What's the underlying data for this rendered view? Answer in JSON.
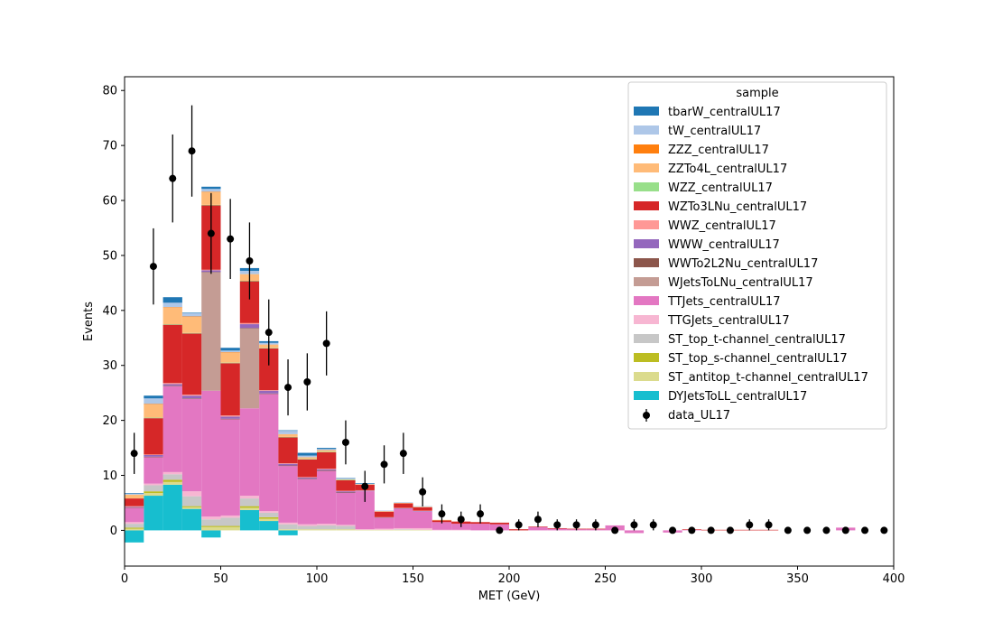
{
  "chart_data": {
    "type": "stacked-histogram",
    "xlabel": "MET (GeV)",
    "ylabel": "Events",
    "xlim": [
      0,
      400
    ],
    "ylim": [
      -6.5,
      82.5
    ],
    "xticks": [
      0,
      50,
      100,
      150,
      200,
      250,
      300,
      350,
      400
    ],
    "yticks": [
      0,
      10,
      20,
      30,
      40,
      50,
      60,
      70,
      80
    ],
    "legend_title": "sample",
    "legend_position": "upper right",
    "bin_edges": [
      0,
      10,
      20,
      30,
      40,
      50,
      60,
      70,
      80,
      90,
      100,
      110,
      120,
      130,
      140,
      150,
      160,
      170,
      180,
      190,
      200,
      210,
      220,
      230,
      240,
      250,
      260,
      270,
      280,
      290,
      300,
      310,
      320,
      330,
      340,
      350,
      360,
      370,
      380,
      390,
      400
    ],
    "series": [
      {
        "name": "DYJetsToLL_centralUL17",
        "color": "#17becf",
        "values": [
          -2.2,
          6.3,
          8.3,
          3.9,
          -1.3,
          0.0,
          3.7,
          1.7,
          -0.9,
          0.0,
          0.0,
          0.0,
          0,
          0,
          0,
          0,
          0,
          0,
          0,
          0,
          0,
          0,
          0,
          0,
          0,
          0,
          0,
          0,
          0,
          0,
          0,
          0,
          0,
          0,
          0,
          0,
          0,
          0,
          0,
          0
        ]
      },
      {
        "name": "ST_antitop_t-channel_centralUL17",
        "color": "#dbdb8d",
        "values": [
          0.3,
          0.5,
          0.5,
          0.3,
          0.6,
          0.6,
          0.4,
          0.4,
          0.2,
          0.2,
          0.2,
          0.2,
          0.1,
          0.1,
          0.1,
          0.1,
          0,
          0,
          0,
          0,
          0,
          0,
          0,
          0,
          0,
          0,
          0,
          0,
          0,
          0,
          0,
          0,
          0,
          0,
          0,
          0,
          0,
          0,
          0,
          0
        ]
      },
      {
        "name": "ST_top_s-channel_centralUL17",
        "color": "#bcbd22",
        "values": [
          0.2,
          0.3,
          0.4,
          0.2,
          0.2,
          0.2,
          0.3,
          0.3,
          0,
          0,
          0,
          0,
          0,
          0,
          0,
          0,
          0,
          0,
          0,
          0,
          0,
          0,
          0,
          0,
          0,
          0,
          0,
          0,
          0,
          0,
          0,
          0,
          0,
          0,
          0,
          0,
          0,
          0,
          0,
          0
        ]
      },
      {
        "name": "ST_top_t-channel_centralUL17",
        "color": "#c7c7c7",
        "values": [
          0.7,
          1.1,
          1.0,
          1.8,
          1.2,
          1.5,
          1.4,
          0.8,
          0.9,
          0.6,
          0.7,
          0.6,
          0.0,
          0.0,
          0.1,
          0.0,
          0,
          0,
          0,
          0,
          0,
          0,
          0,
          0,
          0,
          0,
          0,
          0,
          0,
          0,
          0,
          0,
          0,
          0,
          0,
          0,
          0,
          0,
          0,
          0
        ]
      },
      {
        "name": "TTGJets_centralUL17",
        "color": "#f7b6d2",
        "values": [
          0.3,
          0.3,
          0.4,
          0.9,
          0.5,
          0.4,
          0.5,
          0.3,
          0.3,
          0.3,
          0.3,
          0.2,
          0.1,
          0.2,
          0.2,
          0.3,
          0.1,
          0.1,
          0.0,
          0.0,
          0.0,
          0.0,
          0,
          0,
          0,
          0,
          0,
          0,
          0,
          0,
          0,
          0,
          0,
          0,
          0,
          0,
          0,
          0,
          0,
          0
        ]
      },
      {
        "name": "TTJets_centralUL17",
        "color": "#e377c2",
        "values": [
          2.6,
          4.8,
          15.6,
          16.8,
          22.9,
          17.5,
          15.9,
          21.3,
          10.3,
          8.2,
          9.6,
          5.8,
          6.9,
          1.9,
          3.5,
          3.0,
          1.4,
          1.1,
          1.2,
          1.1,
          0.0,
          0.6,
          0.3,
          0.2,
          0.2,
          0.9,
          -0.5,
          0.0,
          -0.4,
          0.1,
          0,
          0,
          0,
          0,
          0,
          0,
          0,
          0.5,
          0,
          0
        ]
      },
      {
        "name": "WJetsToLNu_centralUL17",
        "color": "#c49c94",
        "values": [
          0,
          0,
          0,
          0,
          21.5,
          0,
          14.5,
          0,
          0,
          0,
          0,
          0,
          0,
          0,
          0,
          0,
          0,
          0,
          0,
          0,
          0,
          0,
          0,
          0,
          0,
          0,
          0,
          0,
          0,
          0,
          0,
          0,
          0,
          0,
          0,
          0,
          0,
          0,
          0,
          0
        ]
      },
      {
        "name": "WWTo2L2Nu_centralUL17",
        "color": "#8c564b",
        "values": [
          0.1,
          0.1,
          0.1,
          0.1,
          0.1,
          0.1,
          0.1,
          0.1,
          0.1,
          0.1,
          0.1,
          0.1,
          0,
          0,
          0,
          0,
          0,
          0,
          0,
          0,
          0,
          0,
          0,
          0,
          0,
          0,
          0,
          0,
          0,
          0,
          0,
          0,
          0,
          0,
          0,
          0,
          0,
          0,
          0,
          0
        ]
      },
      {
        "name": "WWW_centralUL17",
        "color": "#9467bd",
        "values": [
          0.1,
          0.3,
          0.3,
          0.5,
          0.3,
          0.4,
          0.7,
          0.5,
          0.3,
          0.2,
          0.2,
          0.2,
          0.1,
          0.1,
          0.1,
          0.1,
          0,
          0,
          0,
          0,
          0,
          0,
          0,
          0,
          0,
          0,
          0,
          0,
          0,
          0,
          0,
          0,
          0,
          0,
          0,
          0,
          0,
          0,
          0,
          0
        ]
      },
      {
        "name": "WWZ_centralUL17",
        "color": "#ff9896",
        "values": [
          0.1,
          0.1,
          0.2,
          0.2,
          0.1,
          0.2,
          0.2,
          0.1,
          0.1,
          0.1,
          0.1,
          0.1,
          0.1,
          0.1,
          0.1,
          0.1,
          0,
          0,
          0,
          0,
          0,
          0,
          0,
          0,
          0,
          0,
          0,
          0,
          0,
          0,
          0,
          0,
          0,
          0,
          0,
          0,
          0,
          0,
          0,
          0
        ]
      },
      {
        "name": "WZTo3LNu_centralUL17",
        "color": "#d62728",
        "values": [
          1.4,
          6.6,
          10.6,
          11.1,
          11.7,
          9.5,
          7.6,
          7.6,
          4.7,
          3.2,
          3.0,
          1.9,
          1.0,
          1.0,
          0.8,
          0.6,
          0.3,
          0.4,
          0.3,
          0.3,
          0.2,
          0.1,
          0.1,
          0.1,
          0.1,
          0,
          0,
          0,
          0,
          0.1,
          0.1,
          0.1,
          0.1,
          0.1,
          0,
          0,
          0,
          0,
          0,
          0
        ]
      },
      {
        "name": "WZZ_centralUL17",
        "color": "#98df8a",
        "values": [
          0.0,
          0.1,
          0.1,
          0.1,
          0.1,
          0.1,
          0.1,
          0.1,
          0.1,
          0.1,
          0.1,
          0.1,
          0,
          0,
          0,
          0,
          0,
          0,
          0,
          0,
          0,
          0,
          0,
          0,
          0,
          0,
          0,
          0,
          0,
          0,
          0,
          0,
          0,
          0,
          0,
          0,
          0,
          0,
          0,
          0
        ]
      },
      {
        "name": "ZZTo4L_centralUL17",
        "color": "#ffbb78",
        "values": [
          0.7,
          2.4,
          3.0,
          2.9,
          2.3,
          1.8,
          1.2,
          0.6,
          0.5,
          0.3,
          0.3,
          0.1,
          0.1,
          0.1,
          0.1,
          0.1,
          0.1,
          0,
          0,
          0,
          0,
          0,
          0,
          0,
          0,
          0,
          0,
          0,
          0,
          0,
          0,
          0,
          0,
          0,
          0,
          0,
          0,
          0,
          0,
          0
        ]
      },
      {
        "name": "ZZZ_centralUL17",
        "color": "#ff7f0e",
        "values": [
          0.0,
          0.1,
          0.1,
          0.1,
          0.1,
          0.1,
          0.0,
          0.0,
          0.0,
          0,
          0,
          0,
          0,
          0,
          0,
          0,
          0,
          0,
          0,
          0,
          0,
          0,
          0,
          0,
          0,
          0,
          0,
          0,
          0,
          0,
          0,
          0,
          0,
          0,
          0,
          0,
          0,
          0,
          0,
          0
        ]
      },
      {
        "name": "tW_centralUL17",
        "color": "#aec7e8",
        "values": [
          0.2,
          1.0,
          0.8,
          0.6,
          0.5,
          0.3,
          0.6,
          0.3,
          0.6,
          0.3,
          0.2,
          0.1,
          0.1,
          0.1,
          0.1,
          0.1,
          0,
          0,
          0,
          0,
          0,
          0,
          0,
          0,
          0,
          0,
          0,
          0,
          0,
          0,
          0,
          0,
          0,
          0,
          0,
          0,
          0,
          0,
          0,
          0
        ]
      },
      {
        "name": "tbarW_centralUL17",
        "color": "#1f77b4",
        "values": [
          0.1,
          0.5,
          1.0,
          0.1,
          0.4,
          0.5,
          0.5,
          0.3,
          0.1,
          0.5,
          0.2,
          0.1,
          0.1,
          0,
          0,
          0,
          0,
          0,
          0,
          0,
          0,
          0,
          0,
          0,
          0,
          0,
          0,
          0,
          0,
          0,
          0,
          0,
          0,
          0,
          0,
          0,
          0,
          0,
          0,
          0
        ]
      }
    ],
    "data_series": {
      "name": "data_UL17",
      "color": "#000000",
      "x": [
        5,
        15,
        25,
        35,
        45,
        55,
        65,
        75,
        85,
        95,
        105,
        115,
        125,
        135,
        145,
        155,
        165,
        175,
        185,
        195,
        205,
        215,
        225,
        235,
        245,
        255,
        265,
        275,
        285,
        295,
        305,
        315,
        325,
        335,
        345,
        355,
        365,
        375,
        385,
        395
      ],
      "y": [
        14,
        48,
        64,
        69,
        54,
        53,
        49,
        36,
        26,
        27,
        34,
        16,
        8,
        12,
        14,
        7,
        3,
        2,
        3,
        0,
        1,
        2,
        1,
        1,
        1,
        0,
        1,
        1,
        0,
        0,
        0,
        0,
        1,
        1,
        0,
        0,
        0,
        0,
        0,
        0
      ]
    }
  }
}
